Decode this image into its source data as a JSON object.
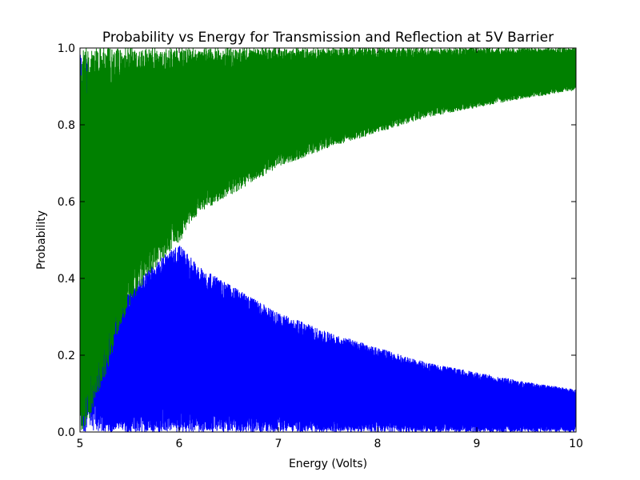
{
  "chart_data": {
    "type": "line",
    "title": "Probability vs Energy for Transmission and Reflection at 5V Barrier",
    "xlabel": "Energy (Volts)",
    "ylabel": "Probability",
    "xlim": [
      5,
      10
    ],
    "ylim": [
      0,
      1
    ],
    "xticks": [
      5,
      6,
      7,
      8,
      9,
      10
    ],
    "yticks": [
      0.0,
      0.2,
      0.4,
      0.6,
      0.8,
      1.0
    ],
    "xtick_labels": [
      "5",
      "6",
      "7",
      "8",
      "9",
      "10"
    ],
    "ytick_labels": [
      "0.0",
      "0.2",
      "0.4",
      "0.6",
      "0.8",
      "1.0"
    ],
    "grid": false,
    "series": [
      {
        "color": "#0000ff",
        "description_envelope": "oscillates between 0 and an upper envelope",
        "envelope_x": [
          5.0,
          5.1,
          5.2,
          5.3,
          5.4,
          5.5,
          5.6,
          5.7,
          5.8,
          5.9,
          6.0,
          6.1,
          6.2,
          6.4,
          6.6,
          6.8,
          7.0,
          7.5,
          8.0,
          8.5,
          9.0,
          9.5,
          10.0
        ],
        "envelope_upper": [
          1.0,
          0.97,
          0.42,
          0.3,
          0.33,
          0.37,
          0.4,
          0.43,
          0.45,
          0.47,
          0.49,
          0.46,
          0.43,
          0.4,
          0.37,
          0.34,
          0.31,
          0.26,
          0.22,
          0.18,
          0.155,
          0.13,
          0.11
        ]
      },
      {
        "color": "#008000",
        "description_envelope": "oscillates between a lower envelope and 1",
        "envelope_x": [
          5.0,
          5.1,
          5.2,
          5.3,
          5.4,
          5.5,
          5.6,
          5.7,
          5.8,
          5.9,
          6.0,
          6.1,
          6.2,
          6.4,
          6.6,
          6.8,
          7.0,
          7.5,
          8.0,
          8.5,
          9.0,
          9.5,
          10.0
        ],
        "envelope_lower": [
          0.0,
          0.03,
          0.1,
          0.18,
          0.27,
          0.33,
          0.37,
          0.41,
          0.44,
          0.47,
          0.49,
          0.54,
          0.57,
          0.6,
          0.63,
          0.66,
          0.69,
          0.74,
          0.78,
          0.82,
          0.845,
          0.87,
          0.89
        ]
      }
    ]
  }
}
